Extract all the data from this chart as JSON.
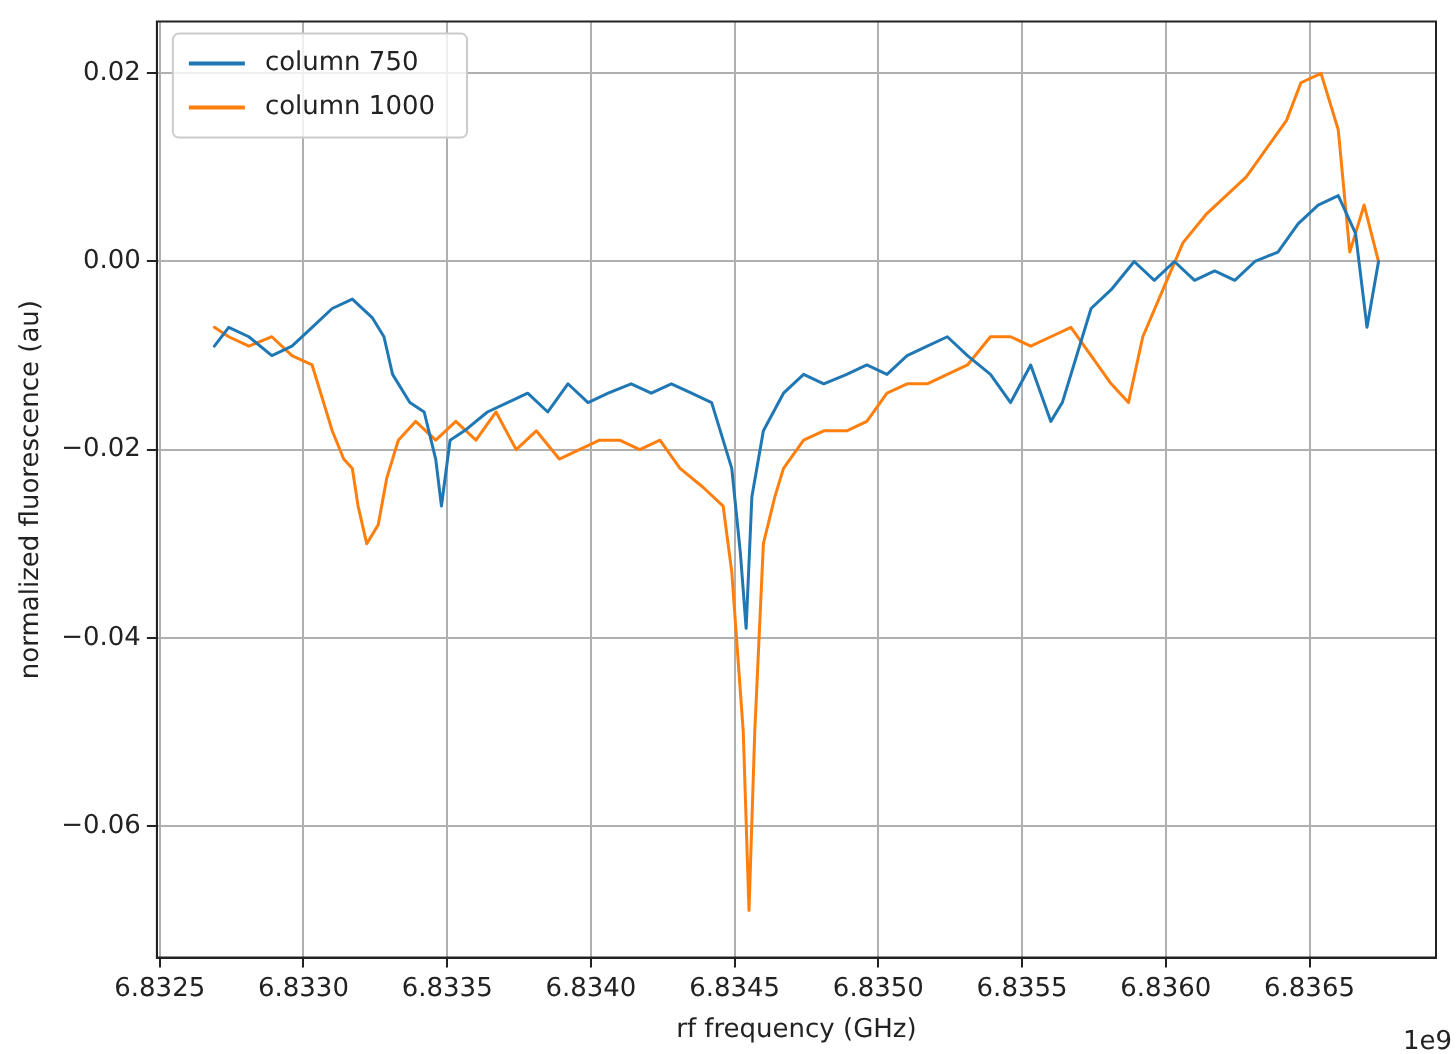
{
  "chart_data": {
    "type": "line",
    "xlabel": "rf frequency (GHz)",
    "ylabel": "normalized fluorescence (au)",
    "annotations": [
      "1e9"
    ],
    "xlim": [
      6.83249,
      6.83694
    ],
    "ylim": [
      -0.074,
      0.0255
    ],
    "xticks": [
      6.8325,
      {
        "value": 6.833,
        "label": "6.8330"
      },
      6.8335,
      {
        "value": 6.834,
        "label": "6.8340"
      },
      6.8345,
      {
        "value": 6.835,
        "label": "6.8350"
      },
      6.8355,
      {
        "value": 6.836,
        "label": "6.8360"
      },
      6.8365
    ],
    "yticks": [
      {
        "value": -0.06,
        "label": "−0.06"
      },
      {
        "value": -0.04,
        "label": "−0.04"
      },
      {
        "value": -0.02,
        "label": "−0.02"
      },
      {
        "value": 0,
        "label": "0.00"
      },
      0.02
    ],
    "grid": true,
    "legend": "top left",
    "marker": "none",
    "line_style": "solid",
    "series": [
      {
        "name": "column 750",
        "color": "#1f77b4",
        "x": [
          6.83269,
          6.83274,
          6.83281,
          6.83289,
          6.83296,
          6.83303,
          6.8331,
          6.83317,
          6.83324,
          6.83328,
          6.83331,
          6.83337,
          6.83342,
          6.83346,
          6.83348,
          6.83351,
          6.83356,
          6.83364,
          6.83371,
          6.83378,
          6.83385,
          6.83392,
          6.83399,
          6.83406,
          6.83414,
          6.83421,
          6.83428,
          6.83435,
          6.83442,
          6.83449,
          6.83452,
          6.83454,
          6.83456,
          6.8346,
          6.83467,
          6.83474,
          6.83481,
          6.83489,
          6.83496,
          6.83503,
          6.8351,
          6.83517,
          6.83524,
          6.83531,
          6.83539,
          6.83546,
          6.83553,
          6.8356,
          6.83564,
          6.83571,
          6.83574,
          6.83581,
          6.83589,
          6.83596,
          6.83603,
          6.8361,
          6.83617,
          6.83624,
          6.83631,
          6.83639,
          6.83646,
          6.83653,
          6.8366,
          6.83666,
          6.8367,
          6.83674
        ],
        "values": [
          -0.009,
          -0.007,
          -0.008,
          -0.01,
          -0.009,
          -0.007,
          -0.005,
          -0.004,
          -0.006,
          -0.008,
          -0.012,
          -0.015,
          -0.016,
          -0.021,
          -0.026,
          -0.019,
          -0.018,
          -0.016,
          -0.015,
          -0.014,
          -0.016,
          -0.013,
          -0.015,
          -0.014,
          -0.013,
          -0.014,
          -0.013,
          -0.014,
          -0.015,
          -0.022,
          -0.031,
          -0.039,
          -0.025,
          -0.018,
          -0.014,
          -0.012,
          -0.013,
          -0.012,
          -0.011,
          -0.012,
          -0.01,
          -0.009,
          -0.008,
          -0.01,
          -0.012,
          -0.015,
          -0.011,
          -0.017,
          -0.015,
          -0.008,
          -0.005,
          -0.003,
          0,
          -0.002,
          0,
          -0.002,
          -0.001,
          -0.002,
          0,
          0.001,
          0.004,
          0.006,
          0.007,
          0.003,
          -0.007,
          0
        ]
      },
      {
        "name": "column 1000",
        "color": "#ff7f0e",
        "x": [
          6.83269,
          6.83274,
          6.83281,
          6.83289,
          6.83296,
          6.83303,
          6.83306,
          6.8331,
          6.83314,
          6.83317,
          6.83319,
          6.83322,
          6.83326,
          6.83329,
          6.83333,
          6.83339,
          6.83346,
          6.83353,
          6.8336,
          6.83367,
          6.83374,
          6.83381,
          6.83389,
          6.83396,
          6.83403,
          6.8341,
          6.83417,
          6.83424,
          6.83431,
          6.83439,
          6.83446,
          6.83449,
          6.83453,
          6.83455,
          6.83457,
          6.8346,
          6.83464,
          6.83467,
          6.83474,
          6.83481,
          6.83489,
          6.83496,
          6.83503,
          6.8351,
          6.83517,
          6.83524,
          6.83531,
          6.83539,
          6.83546,
          6.83553,
          6.8356,
          6.83567,
          6.83574,
          6.83581,
          6.83587,
          6.83592,
          6.83599,
          6.83606,
          6.83614,
          6.83621,
          6.83628,
          6.83635,
          6.83642,
          6.83647,
          6.83654,
          6.8366,
          6.83664,
          6.83669,
          6.83674
        ],
        "values": [
          -0.007,
          -0.008,
          -0.009,
          -0.008,
          -0.01,
          -0.011,
          -0.014,
          -0.018,
          -0.021,
          -0.022,
          -0.026,
          -0.03,
          -0.028,
          -0.023,
          -0.019,
          -0.017,
          -0.019,
          -0.017,
          -0.019,
          -0.016,
          -0.02,
          -0.018,
          -0.021,
          -0.02,
          -0.019,
          -0.019,
          -0.02,
          -0.019,
          -0.022,
          -0.024,
          -0.026,
          -0.033,
          -0.05,
          -0.069,
          -0.05,
          -0.03,
          -0.025,
          -0.022,
          -0.019,
          -0.018,
          -0.018,
          -0.017,
          -0.014,
          -0.013,
          -0.013,
          -0.012,
          -0.011,
          -0.008,
          -0.008,
          -0.009,
          -0.008,
          -0.007,
          -0.01,
          -0.013,
          -0.015,
          -0.008,
          -0.003,
          0.002,
          0.005,
          0.007,
          0.009,
          0.012,
          0.015,
          0.019,
          0.02,
          0.014,
          0.001,
          0.006,
          0
        ]
      }
    ]
  }
}
